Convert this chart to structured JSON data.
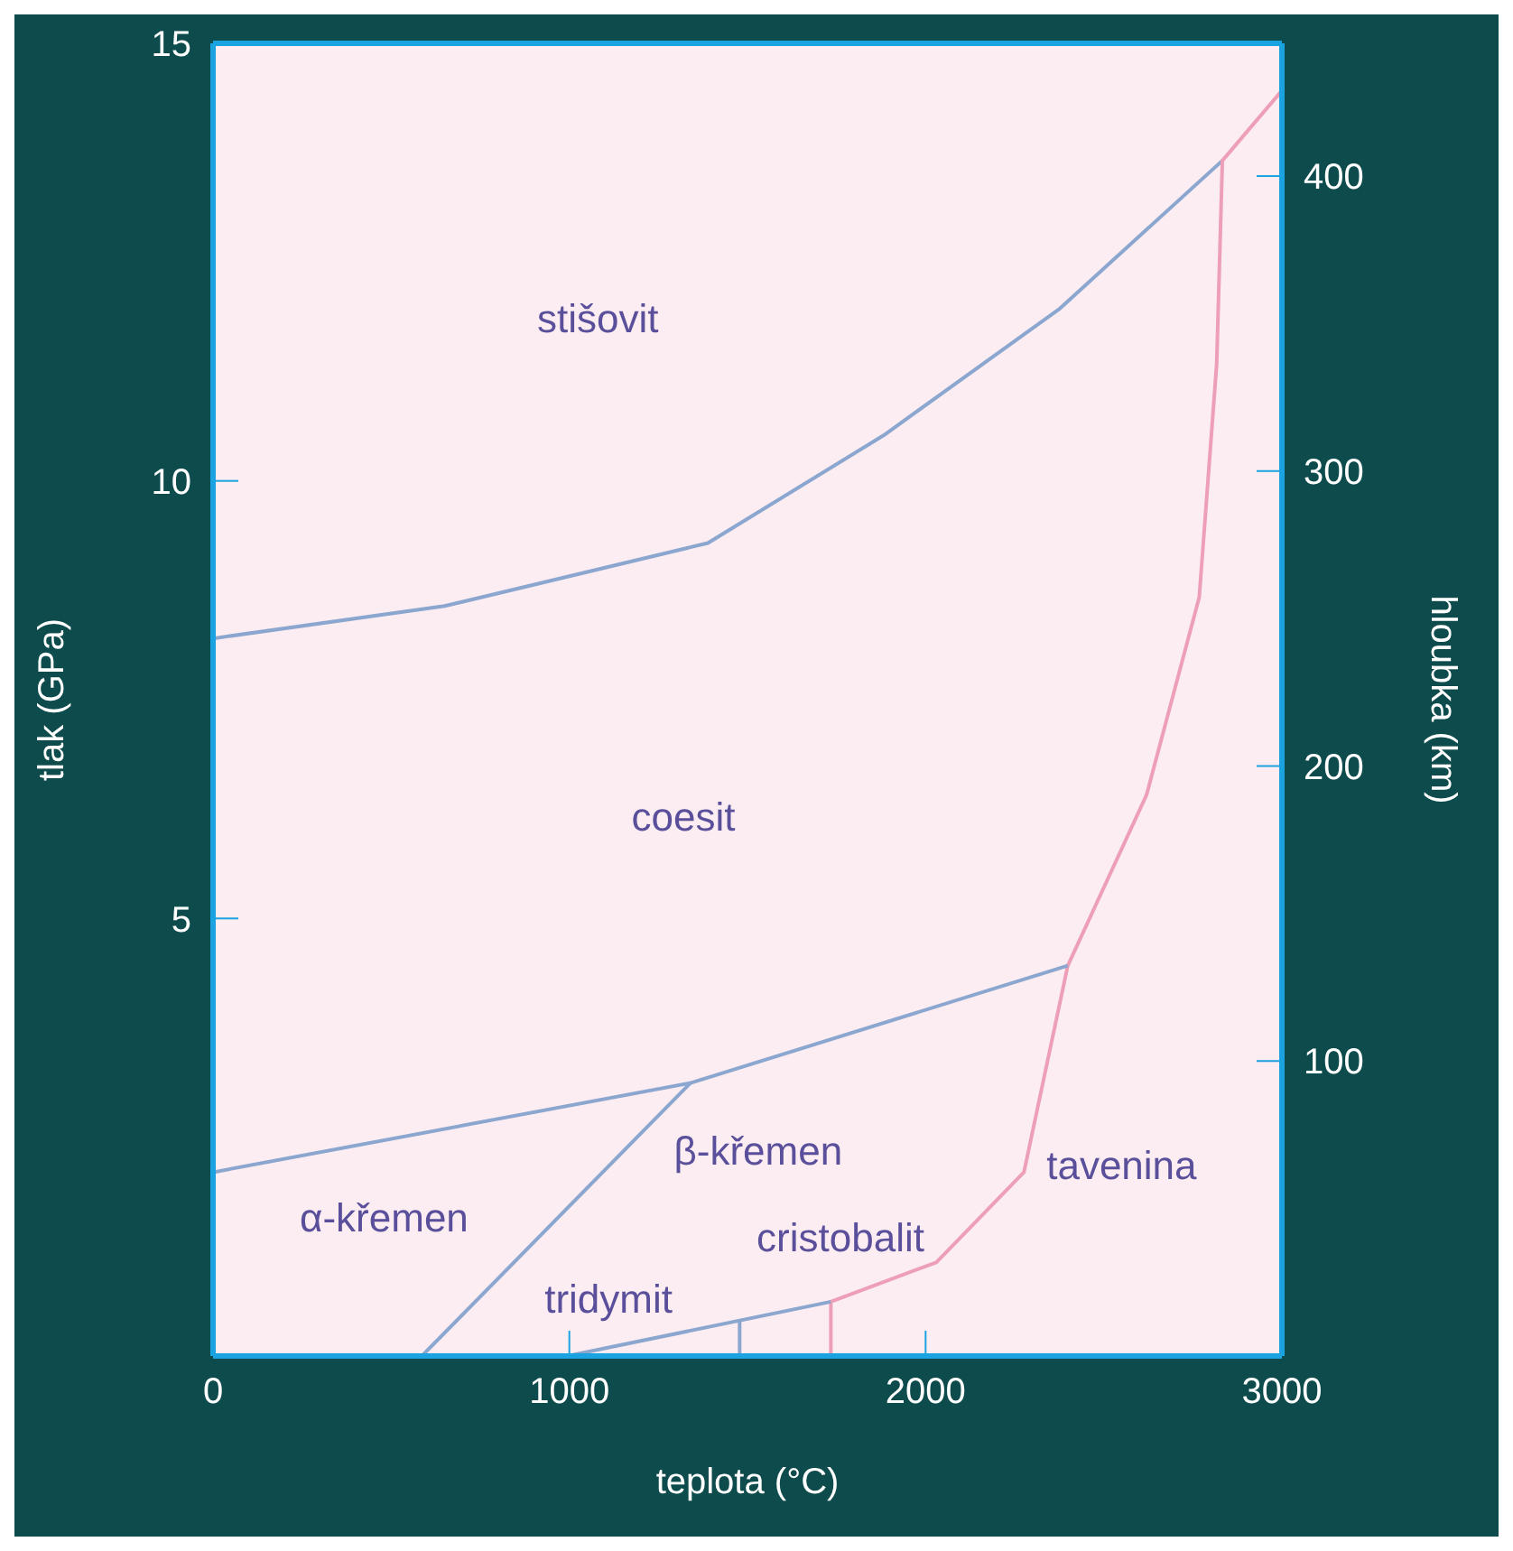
{
  "chart_data": {
    "type": "line",
    "xlabel": "teplota (°C)",
    "ylabel": "tlak (GPa)",
    "y2label": "hloubka (km)",
    "xlim": [
      0,
      3000
    ],
    "xticks": [
      0,
      1000,
      2000,
      3000
    ],
    "ylim": [
      0,
      15
    ],
    "yticks": [
      5,
      10,
      15
    ],
    "y2lim": [
      0,
      445
    ],
    "y2ticks": [
      100,
      200,
      300,
      400
    ],
    "series": [
      {
        "color": "#8ba6cf",
        "x": [
          0,
          650,
          1389,
          1882,
          2374,
          2833
        ],
        "values": [
          8.2,
          8.57,
          9.29,
          10.52,
          11.96,
          13.66
        ]
      },
      {
        "color": "#ee9fb8",
        "x": [
          1734,
          1734,
          2030,
          2276,
          2399,
          2620,
          2768,
          2817,
          2833,
          3000
        ],
        "values": [
          0,
          0.62,
          1.07,
          2.1,
          4.46,
          6.41,
          8.67,
          11.34,
          13.66,
          14.46
        ]
      },
      {
        "color": "#8ba6cf",
        "x": [
          0,
          1340,
          2399
        ],
        "values": [
          2.1,
          3.12,
          4.46
        ]
      },
      {
        "color": "#8ba6cf",
        "x": [
          586,
          1340
        ],
        "values": [
          0,
          3.12
        ]
      },
      {
        "color": "#8ba6cf",
        "x": [
          995,
          1734
        ],
        "values": [
          0,
          0.62
        ]
      },
      {
        "color": "#8ba6cf",
        "x": [
          1478,
          1478
        ],
        "values": [
          0,
          0.4
        ]
      }
    ],
    "annotations": [
      "stišovit",
      "coesit",
      "α-křemen",
      "β-křemen",
      "tavenina",
      "tridymit",
      "cristobalit"
    ]
  }
}
